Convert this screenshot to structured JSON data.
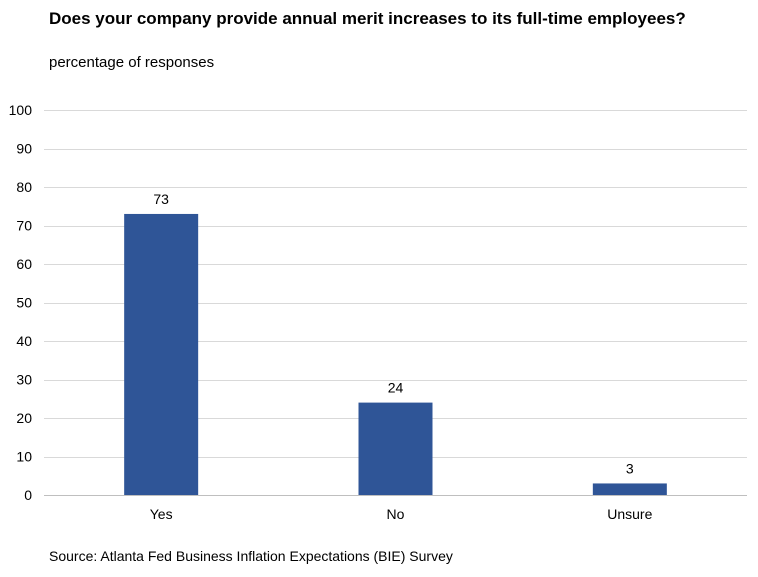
{
  "chart_data": {
    "type": "bar",
    "title": "Does your company provide annual merit increases to its full-time employees?",
    "subtitle": "percentage of responses",
    "source": "Source: Atlanta Fed Business Inflation Expectations (BIE) Survey",
    "categories": [
      "Yes",
      "No",
      "Unsure"
    ],
    "values": [
      73,
      24,
      3
    ],
    "data_labels": [
      "73",
      "24",
      "3"
    ],
    "ylim": [
      0,
      100
    ],
    "yticks": [
      0,
      10,
      20,
      30,
      40,
      50,
      60,
      70,
      80,
      90,
      100
    ],
    "grid": true,
    "legend": "none",
    "bar_color": "#2f5597",
    "grid_color": "#d9d9d9"
  }
}
